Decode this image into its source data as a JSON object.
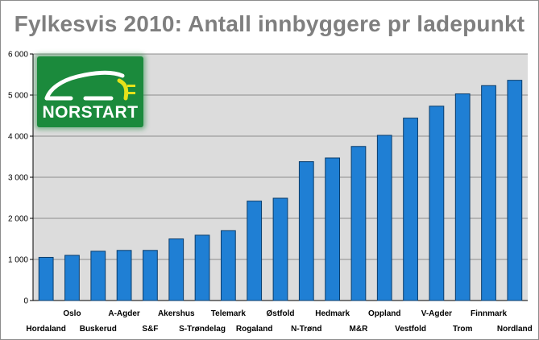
{
  "chart_data": {
    "type": "bar",
    "title": "Fylkesvis 2010: Antall innbyggere pr ladepunkt",
    "xlabel": "",
    "ylabel": "",
    "ylim": [
      0,
      6000
    ],
    "yticks": [
      "0",
      "1 000",
      "2 000",
      "3 000",
      "4 000",
      "5 000",
      "6 000"
    ],
    "grid": true,
    "legend": "none",
    "bar_color": "#1f7fd4",
    "categories": [
      "Hordaland",
      "Oslo",
      "Buskerud",
      "A-Agder",
      "S&F",
      "Akershus",
      "S-Trøndelag",
      "Telemark",
      "Rogaland",
      "Østfold",
      "N-Trønd",
      "Hedmark",
      "M&R",
      "Oppland",
      "Vestfold",
      "V-Agder",
      "Trom",
      "Finnmark",
      "Nordland"
    ],
    "values": [
      1050,
      1100,
      1200,
      1220,
      1220,
      1500,
      1590,
      1700,
      2420,
      2490,
      3380,
      3470,
      3750,
      4020,
      4440,
      4730,
      5030,
      5230,
      5360
    ]
  },
  "logo": {
    "text": "NORSTART",
    "color": "#1b8a3c"
  }
}
